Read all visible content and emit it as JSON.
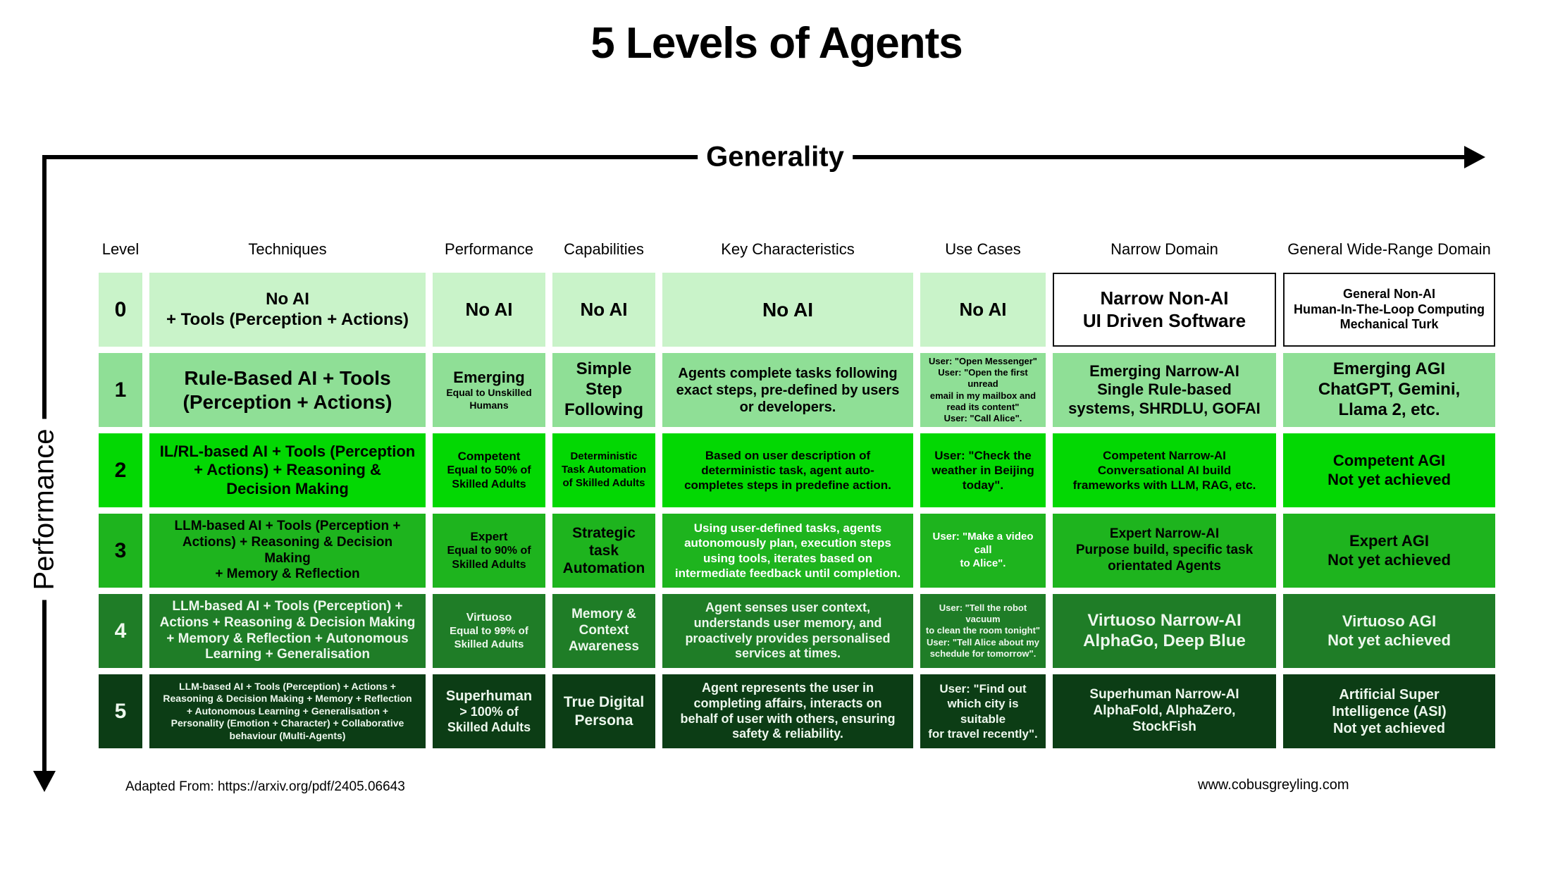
{
  "title": "5 Levels of Agents",
  "axes": {
    "x_label": "Generality",
    "y_label": "Performance"
  },
  "footer": {
    "left": "Adapted From: https://arxiv.org/pdf/2405.06643",
    "right": "www.cobusgreyling.com"
  },
  "colors": {
    "row0": "#c9f3c9",
    "row1": "#8fdf96",
    "row2": "#03d803",
    "row3": "#1eb41e",
    "row4": "#1f7d27",
    "row5": "#0c3d15",
    "white_cell": "#ffffff"
  },
  "table": {
    "headers": [
      "Level",
      "Techniques",
      "Performance",
      "Capabilities",
      "Key Characteristics",
      "Use Cases",
      "Narrow Domain",
      "General Wide-Range Domain"
    ],
    "rows": [
      {
        "level": "0",
        "techniques": "No AI\n+ Tools (Perception + Actions)",
        "performance_main": "No AI",
        "capabilities": "No AI",
        "key_characteristics": "No AI",
        "use_cases": "No AI",
        "narrow_domain": "Narrow Non-AI\nUI Driven Software",
        "general_domain": "General Non-AI\nHuman-In-The-Loop Computing\nMechanical Turk"
      },
      {
        "level": "1",
        "techniques": "Rule-Based AI + Tools\n(Perception + Actions)",
        "performance_main": "Emerging",
        "performance_sub": "Equal to Unskilled\nHumans",
        "capabilities": "Simple Step\nFollowing",
        "key_characteristics": "Agents complete tasks following\nexact steps, pre-defined by users\nor developers.",
        "use_cases": "User: \"Open Messenger\"\nUser: \"Open the first unread\nemail in my mailbox and\nread its content\"\nUser: \"Call Alice\".",
        "narrow_domain": "Emerging Narrow-AI\nSingle Rule-based\nsystems, SHRDLU, GOFAI",
        "general_domain": "Emerging AGI\nChatGPT, Gemini,\nLlama 2, etc."
      },
      {
        "level": "2",
        "techniques": "IL/RL-based AI + Tools (Perception\n+ Actions) + Reasoning &\nDecision Making",
        "performance_main": "Competent",
        "performance_sub": "Equal to 50% of\nSkilled Adults",
        "capabilities": "Deterministic\nTask Automation\nof Skilled Adults",
        "key_characteristics": "Based on user description of\ndeterministic task, agent auto-\ncompletes steps in predefine action.",
        "use_cases": "User: \"Check the\nweather in Beijing\ntoday\".",
        "narrow_domain": "Competent Narrow-AI\nConversational AI build\nframeworks with LLM, RAG, etc.",
        "general_domain": "Competent AGI\nNot yet achieved"
      },
      {
        "level": "3",
        "techniques": "LLM-based AI + Tools (Perception +\nActions) + Reasoning & Decision\nMaking\n+ Memory & Reflection",
        "performance_main": "Expert",
        "performance_sub": "Equal to 90% of\nSkilled Adults",
        "capabilities": "Strategic\ntask\nAutomation",
        "key_characteristics": "Using user-defined tasks, agents\nautonomously plan, execution steps\nusing tools, iterates based on\nintermediate feedback until completion.",
        "use_cases": "User: \"Make a video call\nto Alice\".",
        "narrow_domain": "Expert Narrow-AI\nPurpose build, specific task\norientated Agents",
        "general_domain": "Expert AGI\nNot yet achieved"
      },
      {
        "level": "4",
        "techniques": "LLM-based AI + Tools (Perception) +\nActions + Reasoning & Decision Making\n+ Memory & Reflection + Autonomous\nLearning + Generalisation",
        "performance_main": "Virtuoso",
        "performance_sub": "Equal to 99% of\nSkilled Adults",
        "capabilities": "Memory &\nContext\nAwareness",
        "key_characteristics": "Agent senses user context,\nunderstands user memory, and\nproactively provides personalised\nservices at times.",
        "use_cases": "User: \"Tell the robot vacuum\nto clean the room tonight\"\nUser: \"Tell Alice about my\nschedule for tomorrow\".",
        "narrow_domain": "Virtuoso Narrow-AI\nAlphaGo, Deep Blue",
        "general_domain": "Virtuoso AGI\nNot yet achieved"
      },
      {
        "level": "5",
        "techniques": "LLM-based AI + Tools (Perception) + Actions +\nReasoning & Decision Making + Memory + Reflection\n+ Autonomous Learning + Generalisation +\nPersonality (Emotion + Character) + Collaborative\nbehaviour (Multi-Agents)",
        "performance_main": "Superhuman",
        "performance_sub": "> 100% of\nSkilled Adults",
        "capabilities": "True Digital\nPersona",
        "key_characteristics": "Agent represents the user in\ncompleting affairs, interacts on\nbehalf of user with others, ensuring\nsafety & reliability.",
        "use_cases": "User: \"Find out\nwhich city is suitable\nfor travel recently\".",
        "narrow_domain": "Superhuman Narrow-AI\nAlphaFold, AlphaZero,\nStockFish",
        "general_domain": "Artificial Super\nIntelligence (ASI)\nNot yet achieved"
      }
    ]
  }
}
